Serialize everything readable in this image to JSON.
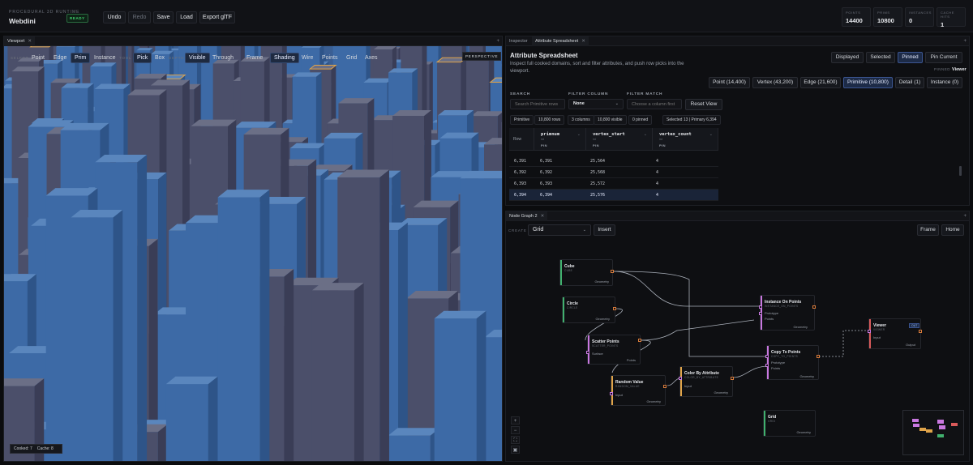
{
  "app": {
    "subtitle": "PROCEDURAL 3D RUNTIME",
    "title": "Webdini",
    "status": "READY"
  },
  "toolbar": {
    "undo": "Undo",
    "redo": "Redo",
    "save": "Save",
    "load": "Load",
    "export": "Export glTF"
  },
  "stats": [
    {
      "label": "POINTS",
      "value": "14400"
    },
    {
      "label": "PRIMS",
      "value": "10800"
    },
    {
      "label": "INSTANCES",
      "value": "0"
    },
    {
      "label": "CACHE HITS",
      "value": "1"
    }
  ],
  "viewport": {
    "tab": "Viewport",
    "select_label": "SELECT",
    "select_modes": [
      "Point",
      "Edge",
      "Prim",
      "Instance"
    ],
    "tool_label": "TOOL",
    "tools": [
      "Pick",
      "Box"
    ],
    "depth_label": "DEPTH",
    "depth_modes": [
      "Visible",
      "Through"
    ],
    "frame": "Frame",
    "display": [
      "Shading",
      "Wire",
      "Points",
      "Grid",
      "Axes"
    ],
    "projection": "PERSPECTIVE",
    "cooked": "Cooked: 7",
    "cache": "Cache: 8"
  },
  "inspector": {
    "tabs": [
      "Inspector",
      "Attribute Spreadsheet"
    ],
    "title": "Attribute Spreadsheet",
    "description": "Inspect full cooked domains, sort and filter attributes, and push row picks into the viewport.",
    "view_modes": [
      "Displayed",
      "Selected",
      "Pinned",
      "Pin Current"
    ],
    "pinned_label": "PINNED",
    "pinned_value": "Viewer",
    "domains": [
      "Point (14,400)",
      "Vertex (43,200)",
      "Edge (21,600)",
      "Primitive (10,800)",
      "Detail (1)",
      "Instance (0)"
    ],
    "search_label": "SEARCH",
    "search_placeholder": "Search Primitive rows",
    "filter_column_label": "FILTER COLUMN",
    "filter_column_value": "None",
    "filter_match_label": "FILTER MATCH",
    "filter_match_placeholder": "Choose a column first",
    "reset": "Reset View",
    "chips": [
      "Primitive",
      "10,800 rows",
      "3 columns",
      "10,800 visible",
      "0 pinned",
      "Selected 13 | Primary 6,394"
    ],
    "columns": [
      {
        "name": "Row",
        "type": "",
        "tag": ""
      },
      {
        "name": "primnum",
        "type": "int",
        "tag": "PIN"
      },
      {
        "name": "vertex_start",
        "type": "int",
        "tag": "PIN"
      },
      {
        "name": "vertex_count",
        "type": "int",
        "tag": "PIN"
      }
    ],
    "rows": [
      [
        "6,391",
        "6,391",
        "25,564",
        "4"
      ],
      [
        "6,392",
        "6,392",
        "25,568",
        "4"
      ],
      [
        "6,393",
        "6,393",
        "25,572",
        "4"
      ],
      [
        "6,394",
        "6,394",
        "25,576",
        "4"
      ]
    ]
  },
  "nodegraph": {
    "tab": "Node Graph 2",
    "create_label": "CREATE",
    "create_value": "Grid",
    "insert": "Insert",
    "frame": "Frame",
    "home": "Home",
    "nodes": {
      "cube": {
        "title": "Cube",
        "sub": "CUBE",
        "out": "Geometry"
      },
      "circle": {
        "title": "Circle",
        "sub": "CIRCLE",
        "out": "Geometry"
      },
      "scatter": {
        "title": "Scatter Points",
        "sub": "SCATTER_POINTS",
        "in": "Surface",
        "out": "Points"
      },
      "random": {
        "title": "Random Value",
        "sub": "RANDOM_VALUE",
        "in": "Input",
        "out": "Geometry"
      },
      "color": {
        "title": "Color By Attribute",
        "sub": "COLOR_BY_ATTRIBUTE",
        "in": "Input",
        "out": "Geometry"
      },
      "instance": {
        "title": "Instance On Points",
        "sub": "INSTANCE_ON_POINTS",
        "in1": "Prototype",
        "in2": "Points",
        "out": "Geometry"
      },
      "copy": {
        "title": "Copy To Points",
        "sub": "COPY_TO_POINTS",
        "in1": "Prototype",
        "in2": "Points",
        "out": "Geometry"
      },
      "viewer": {
        "title": "Viewer",
        "sub": "VIEWER",
        "badge": "OUT",
        "in": "Input",
        "out": "Output"
      },
      "grid": {
        "title": "Grid",
        "sub": "GRID",
        "out": "Geometry"
      }
    },
    "zoom": [
      "+",
      "−",
      "⛶",
      "▣"
    ]
  },
  "colors": {
    "accent": "#3b5591",
    "output_port": "#d97b3a",
    "input_port": "#c978e0",
    "ready": "#41d36e",
    "selection": "#e0a44a"
  }
}
